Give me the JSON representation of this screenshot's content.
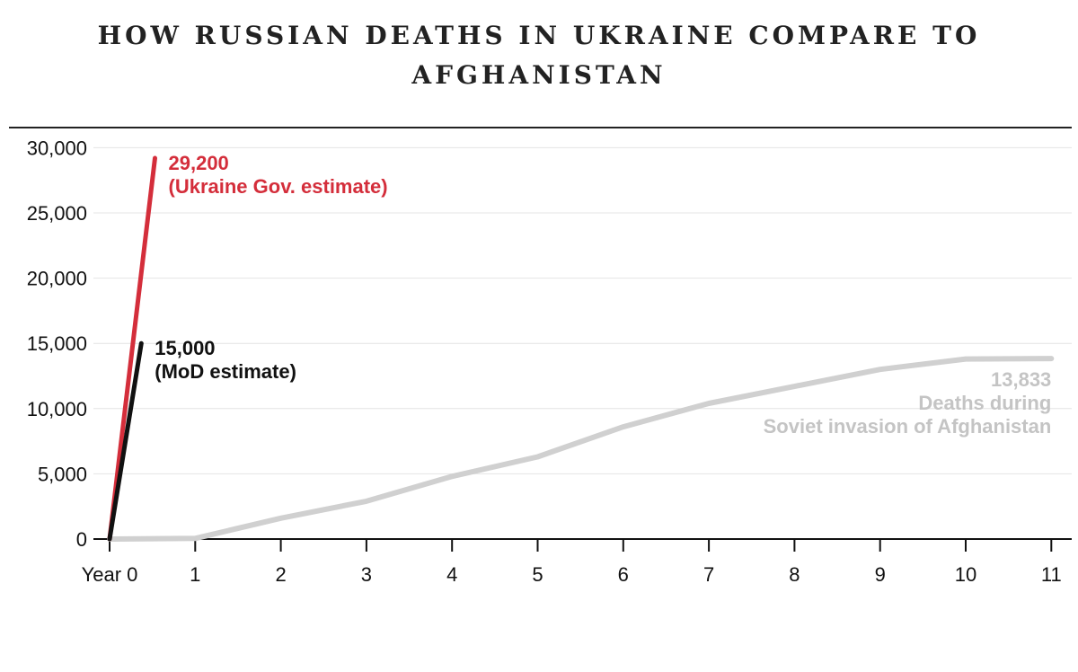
{
  "title_line1": "HOW RUSSIAN DEATHS IN UKRAINE COMPARE TO",
  "title_line2": "AFGHANISTAN",
  "chart_data": {
    "type": "line",
    "title": "HOW RUSSIAN DEATHS IN UKRAINE COMPARE TO AFGHANISTAN",
    "xlim": [
      0,
      11
    ],
    "ylim": [
      0,
      30000
    ],
    "x_ticks": [
      0,
      1,
      2,
      3,
      4,
      5,
      6,
      7,
      8,
      9,
      10,
      11
    ],
    "x_tick_labels": [
      "Year 0",
      "1",
      "2",
      "3",
      "4",
      "5",
      "6",
      "7",
      "8",
      "9",
      "10",
      "11"
    ],
    "y_ticks": [
      0,
      5000,
      10000,
      15000,
      20000,
      25000,
      30000
    ],
    "y_tick_labels": [
      "0",
      "5,000",
      "10,000",
      "15,000",
      "20,000",
      "25,000",
      "30,000"
    ],
    "grid": true,
    "series": [
      {
        "key": "afghanistan",
        "color": "#d0d0d0",
        "x": [
          0,
          1,
          2,
          3,
          4,
          5,
          6,
          7,
          8,
          9,
          10,
          11
        ],
        "y": [
          0,
          50,
          1600,
          2900,
          4800,
          6300,
          8600,
          10400,
          11700,
          13000,
          13800,
          13833
        ],
        "label_lines": [
          "13,833",
          "Deaths during",
          "Soviet invasion of Afghanistan"
        ]
      },
      {
        "key": "ukraine_gov",
        "color": "#d42e3b",
        "x": [
          0,
          0.53
        ],
        "y": [
          0,
          29200
        ],
        "label_lines": [
          "29,200",
          "(Ukraine Gov. estimate)"
        ]
      },
      {
        "key": "mod",
        "color": "#111111",
        "x": [
          0,
          0.37
        ],
        "y": [
          0,
          15000
        ],
        "label_lines": [
          "15,000",
          "(MoD estimate)"
        ]
      }
    ]
  }
}
